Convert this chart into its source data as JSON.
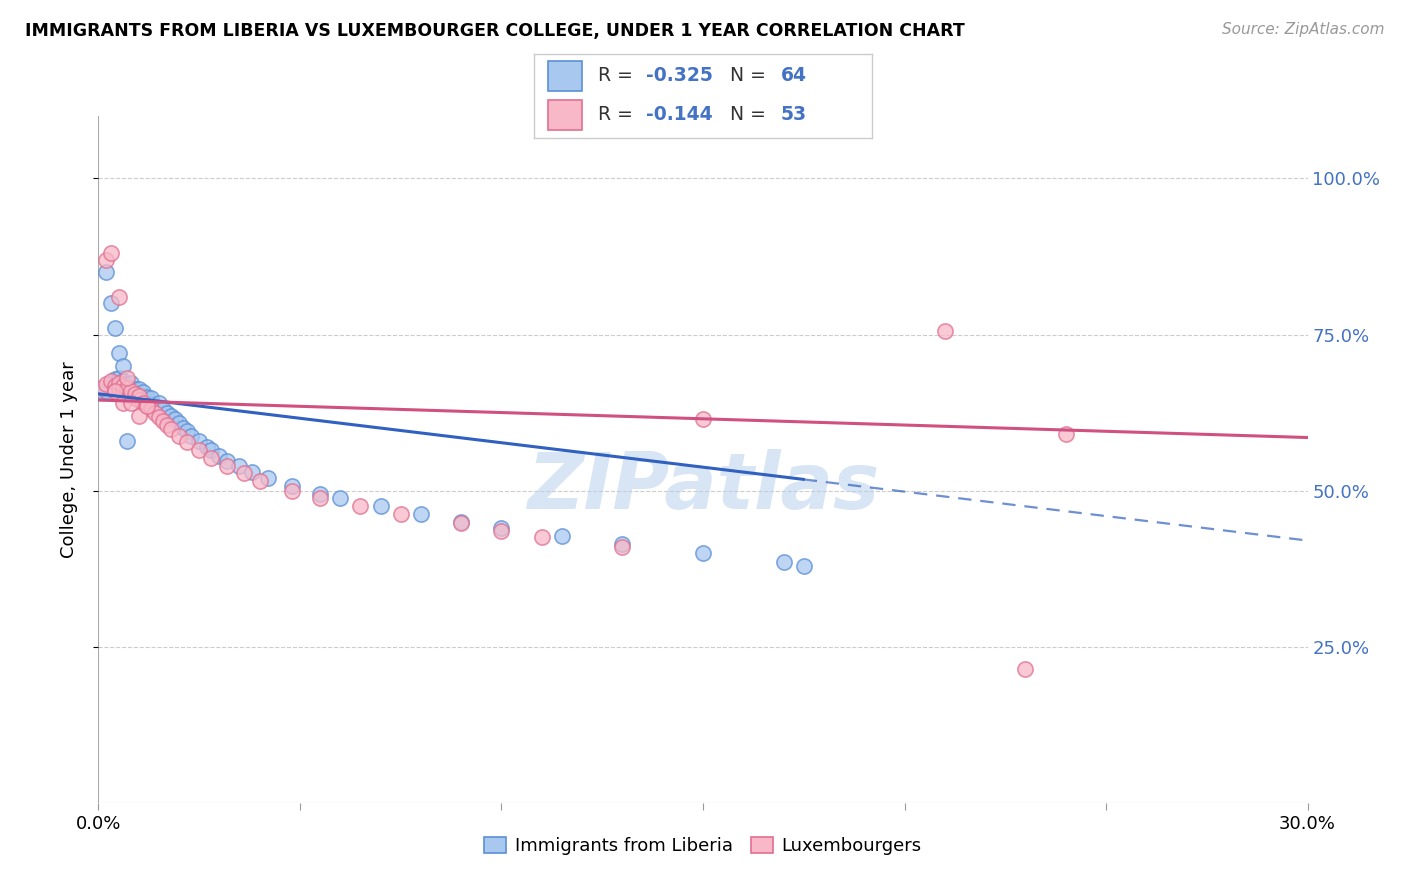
{
  "title": "IMMIGRANTS FROM LIBERIA VS LUXEMBOURGER COLLEGE, UNDER 1 YEAR CORRELATION CHART",
  "source": "Source: ZipAtlas.com",
  "ylabel": "College, Under 1 year",
  "yticks_labels": [
    "100.0%",
    "75.0%",
    "50.0%",
    "25.0%"
  ],
  "yticks_vals": [
    1.0,
    0.75,
    0.5,
    0.25
  ],
  "xlim": [
    0.0,
    0.3
  ],
  "ylim": [
    0.0,
    1.1
  ],
  "series1_face": "#A8C8F0",
  "series1_edge": "#5B8FD4",
  "series2_face": "#F8B8C8",
  "series2_edge": "#E07090",
  "trendline1_color": "#3060C0",
  "trendline2_color": "#D05080",
  "watermark": "ZIPatlas",
  "trendline1_x0": 0.0,
  "trendline1_y0": 0.655,
  "trendline1_x1": 0.3,
  "trendline1_y1": 0.42,
  "trendline1_solid_end_x": 0.175,
  "trendline2_x0": 0.0,
  "trendline2_y0": 0.645,
  "trendline2_x1": 0.3,
  "trendline2_y1": 0.585,
  "blue_x": [
    0.001,
    0.002,
    0.003,
    0.004,
    0.004,
    0.005,
    0.005,
    0.005,
    0.006,
    0.006,
    0.006,
    0.007,
    0.007,
    0.007,
    0.008,
    0.008,
    0.008,
    0.009,
    0.009,
    0.01,
    0.01,
    0.01,
    0.011,
    0.011,
    0.012,
    0.012,
    0.013,
    0.013,
    0.014,
    0.015,
    0.016,
    0.017,
    0.018,
    0.019,
    0.02,
    0.021,
    0.022,
    0.023,
    0.025,
    0.027,
    0.028,
    0.03,
    0.032,
    0.035,
    0.038,
    0.042,
    0.048,
    0.055,
    0.06,
    0.07,
    0.08,
    0.09,
    0.1,
    0.115,
    0.13,
    0.15,
    0.17,
    0.175,
    0.002,
    0.003,
    0.004,
    0.005,
    0.006,
    0.007
  ],
  "blue_y": [
    0.66,
    0.66,
    0.668,
    0.672,
    0.678,
    0.665,
    0.67,
    0.68,
    0.66,
    0.665,
    0.675,
    0.658,
    0.665,
    0.67,
    0.655,
    0.66,
    0.672,
    0.65,
    0.662,
    0.648,
    0.655,
    0.662,
    0.645,
    0.658,
    0.642,
    0.65,
    0.638,
    0.648,
    0.635,
    0.64,
    0.63,
    0.625,
    0.62,
    0.615,
    0.608,
    0.6,
    0.595,
    0.588,
    0.58,
    0.57,
    0.565,
    0.555,
    0.548,
    0.54,
    0.53,
    0.52,
    0.508,
    0.495,
    0.488,
    0.475,
    0.462,
    0.45,
    0.44,
    0.428,
    0.415,
    0.4,
    0.385,
    0.38,
    0.85,
    0.8,
    0.76,
    0.72,
    0.7,
    0.58
  ],
  "pink_x": [
    0.001,
    0.002,
    0.003,
    0.004,
    0.004,
    0.005,
    0.005,
    0.006,
    0.006,
    0.007,
    0.007,
    0.008,
    0.008,
    0.009,
    0.009,
    0.01,
    0.01,
    0.011,
    0.012,
    0.013,
    0.014,
    0.015,
    0.016,
    0.017,
    0.018,
    0.02,
    0.022,
    0.025,
    0.028,
    0.032,
    0.036,
    0.04,
    0.048,
    0.055,
    0.065,
    0.075,
    0.09,
    0.1,
    0.11,
    0.13,
    0.21,
    0.24,
    0.002,
    0.003,
    0.005,
    0.007,
    0.01,
    0.004,
    0.006,
    0.008,
    0.15,
    0.23,
    0.012
  ],
  "pink_y": [
    0.665,
    0.67,
    0.675,
    0.668,
    0.66,
    0.665,
    0.672,
    0.66,
    0.668,
    0.658,
    0.665,
    0.652,
    0.66,
    0.648,
    0.655,
    0.645,
    0.652,
    0.64,
    0.635,
    0.63,
    0.625,
    0.618,
    0.612,
    0.605,
    0.598,
    0.588,
    0.578,
    0.565,
    0.552,
    0.54,
    0.528,
    0.515,
    0.5,
    0.488,
    0.475,
    0.462,
    0.448,
    0.435,
    0.425,
    0.41,
    0.755,
    0.59,
    0.87,
    0.88,
    0.81,
    0.68,
    0.62,
    0.66,
    0.64,
    0.64,
    0.615,
    0.215,
    0.635
  ],
  "legend1_r": "-0.325",
  "legend1_n": "64",
  "legend2_r": "-0.144",
  "legend2_n": "53",
  "bottom_label1": "Immigrants from Liberia",
  "bottom_label2": "Luxembourgers"
}
